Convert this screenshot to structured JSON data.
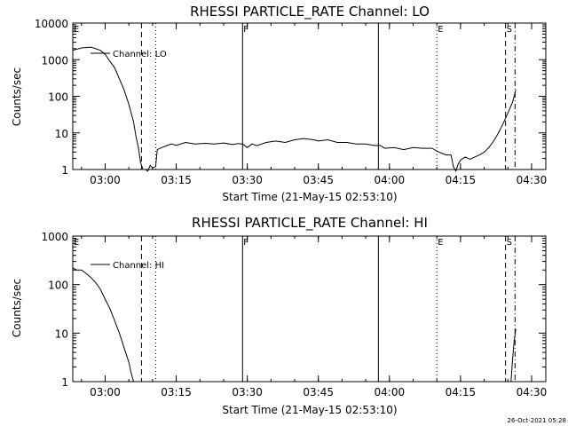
{
  "chart_data": [
    {
      "type": "line",
      "title": "RHESSI PARTICLE_RATE Channel: LO",
      "xlabel": "Start Time (21-May-15 02:53:10)",
      "ylabel": "Counts/sec",
      "yscale": "log",
      "ylim": [
        1,
        10000
      ],
      "xlim": [
        "02:53:10",
        "04:33:00"
      ],
      "x_ticks": [
        "03:00",
        "03:15",
        "03:30",
        "03:45",
        "04:00",
        "04:15",
        "04:30"
      ],
      "y_ticks": [
        "1",
        "10",
        "100",
        "1000",
        "10000"
      ],
      "legend": "Channel: LO",
      "markers": [
        {
          "label": "E",
          "time": "02:53:10",
          "style": "solid"
        },
        {
          "label": "",
          "time": "03:07:40",
          "style": "dashed"
        },
        {
          "label": "",
          "time": "03:10:40",
          "style": "dotted"
        },
        {
          "label": "F",
          "time": "03:29:00",
          "style": "solid"
        },
        {
          "label": "",
          "time": "03:57:40",
          "style": "solid"
        },
        {
          "label": "E",
          "time": "04:10:00",
          "style": "dotted"
        },
        {
          "label": "S",
          "time": "04:24:30",
          "style": "dashed"
        },
        {
          "label": "",
          "time": "04:26:30",
          "style": "dashdot"
        }
      ],
      "x": [
        "02:53:10",
        "02:55",
        "02:57",
        "02:59",
        "03:00",
        "03:01",
        "03:02",
        "03:03",
        "03:04",
        "03:05",
        "03:06",
        "03:06:30",
        "03:07",
        "03:07:30",
        "03:08",
        "03:08:30",
        "03:09",
        "03:09:30",
        "03:10",
        "03:10:40",
        "03:11",
        "03:12",
        "03:13",
        "03:14",
        "03:15",
        "03:17",
        "03:19",
        "03:21",
        "03:23",
        "03:25",
        "03:27",
        "03:28",
        "03:29",
        "03:30",
        "03:31",
        "03:32",
        "03:34",
        "03:36",
        "03:38",
        "03:40",
        "03:42",
        "03:44",
        "03:45",
        "03:47",
        "03:49",
        "03:51",
        "03:53",
        "03:55",
        "03:57",
        "03:58",
        "03:59",
        "04:01",
        "04:03",
        "04:05",
        "04:07",
        "04:09",
        "04:10",
        "04:11",
        "04:12",
        "04:13",
        "04:13:30",
        "04:14",
        "04:14:30",
        "04:15",
        "04:16",
        "04:17",
        "04:18",
        "04:19",
        "04:20",
        "04:21",
        "04:22",
        "04:23",
        "04:24",
        "04:25",
        "04:26",
        "04:26:40"
      ],
      "y": [
        1800,
        2100,
        2200,
        1800,
        1400,
        900,
        600,
        300,
        150,
        60,
        20,
        8,
        4,
        1.5,
        1,
        1,
        0.9,
        1.3,
        1.1,
        1.2,
        3.5,
        4,
        4.5,
        5,
        4.6,
        5.5,
        5,
        5.2,
        5,
        5.3,
        4.8,
        5.1,
        5,
        4,
        5,
        4.5,
        5.5,
        6,
        5.5,
        6.5,
        7,
        6.5,
        6,
        6.5,
        5.5,
        5.5,
        5,
        5,
        4.5,
        4.6,
        3.8,
        4,
        3.5,
        4,
        3.8,
        3.8,
        3.2,
        2.8,
        2.5,
        2.5,
        1.2,
        0.9,
        1.4,
        1.8,
        2.2,
        1.9,
        2.2,
        2.5,
        3,
        4,
        6,
        10,
        18,
        35,
        70,
        150
      ]
    },
    {
      "type": "line",
      "title": "RHESSI PARTICLE_RATE Channel: HI",
      "xlabel": "Start Time (21-May-15 02:53:10)",
      "ylabel": "Counts/sec",
      "yscale": "log",
      "ylim": [
        1,
        1000
      ],
      "xlim": [
        "02:53:10",
        "04:33:00"
      ],
      "x_ticks": [
        "03:00",
        "03:15",
        "03:30",
        "03:45",
        "04:00",
        "04:15",
        "04:30"
      ],
      "y_ticks": [
        "1",
        "10",
        "100",
        "1000"
      ],
      "legend": "Channel: HI",
      "markers": [
        {
          "label": "E",
          "time": "02:53:10",
          "style": "solid"
        },
        {
          "label": "",
          "time": "03:07:40",
          "style": "dashed"
        },
        {
          "label": "",
          "time": "03:10:40",
          "style": "dotted"
        },
        {
          "label": "F",
          "time": "03:29:00",
          "style": "solid"
        },
        {
          "label": "",
          "time": "03:57:40",
          "style": "solid"
        },
        {
          "label": "E",
          "time": "04:10:00",
          "style": "dotted"
        },
        {
          "label": "S",
          "time": "04:24:30",
          "style": "dashed"
        },
        {
          "label": "",
          "time": "04:26:30",
          "style": "dashdot"
        }
      ],
      "segments": [
        {
          "x": [
            "02:53:10",
            "02:54",
            "02:55",
            "02:56",
            "02:57",
            "02:58",
            "02:59",
            "03:00",
            "03:01",
            "03:02",
            "03:03",
            "03:04",
            "03:05",
            "03:05:30",
            "03:06"
          ],
          "y": [
            220,
            200,
            200,
            170,
            140,
            110,
            80,
            50,
            32,
            18,
            10,
            5,
            2.5,
            1.5,
            1
          ]
        },
        {
          "x": [
            "04:25:40",
            "04:26",
            "04:26:20",
            "04:26:40"
          ],
          "y": [
            1,
            3,
            7,
            12
          ]
        }
      ]
    }
  ],
  "timestamp": "26-Oct-2021 05:28"
}
